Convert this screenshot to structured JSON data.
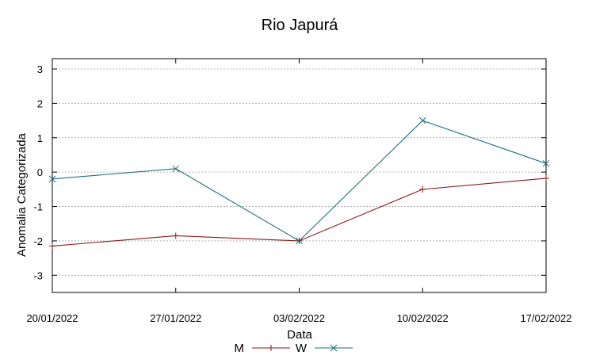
{
  "chart_data": {
    "type": "line",
    "title": "Rio Japurá",
    "xlabel": "Data",
    "ylabel": "Anomalia Categorizada",
    "categories": [
      "20/01/2022",
      "27/01/2022",
      "03/02/2022",
      "10/02/2022",
      "17/02/2022"
    ],
    "yticks": [
      -3,
      -2,
      -1,
      0,
      1,
      2,
      3
    ],
    "ylim": [
      -3.5,
      3.3
    ],
    "grid": true,
    "legend_position": "bottom-center",
    "series": [
      {
        "name": "M",
        "color": "#8b1a1a",
        "marker": "plus",
        "values": [
          -2.15,
          -1.85,
          -2.0,
          -0.5,
          -0.18
        ]
      },
      {
        "name": "W",
        "color": "#1f6f7a",
        "marker": "x",
        "values": [
          -0.2,
          0.1,
          -2.0,
          1.5,
          0.25
        ]
      }
    ]
  }
}
